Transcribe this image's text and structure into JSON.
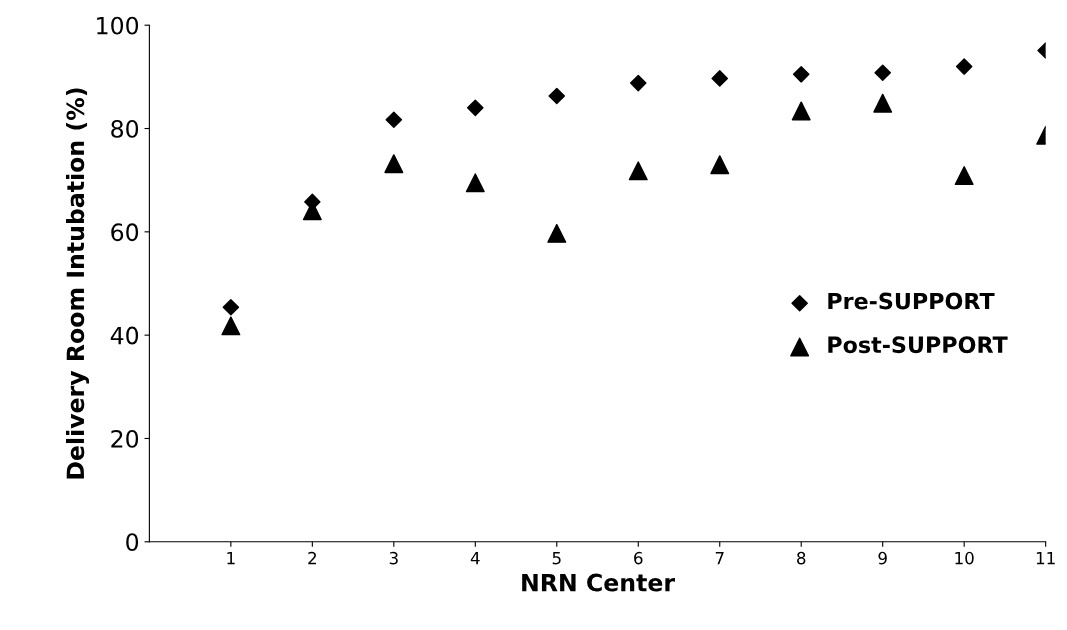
{
  "chart_data": {
    "type": "scatter",
    "xlabel": "NRN Center",
    "ylabel": "Delivery Room Intubation (%)",
    "x": [
      1,
      2,
      3,
      4,
      5,
      6,
      7,
      8,
      9,
      10,
      11
    ],
    "xlim": [
      0,
      11
    ],
    "xticks": [
      1,
      2,
      3,
      4,
      5,
      6,
      7,
      8,
      9,
      10,
      11
    ],
    "ylim": [
      0,
      100
    ],
    "yticks": [
      0,
      20,
      40,
      60,
      80,
      100
    ],
    "grid": false,
    "legend": "right",
    "series": [
      {
        "name": "Pre-SUPPORT",
        "color": "#000000",
        "marker": "diamond",
        "values": [
          45.4,
          65.8,
          81.7,
          84.0,
          86.3,
          88.8,
          89.7,
          90.5,
          90.8,
          92.0,
          95.1
        ]
      },
      {
        "name": "Post-SUPPORT",
        "color": "#000000",
        "marker": "triangle",
        "values": [
          41.8,
          64.1,
          73.2,
          69.5,
          59.7,
          71.8,
          73.0,
          83.4,
          84.9,
          70.9,
          78.7
        ]
      }
    ]
  }
}
